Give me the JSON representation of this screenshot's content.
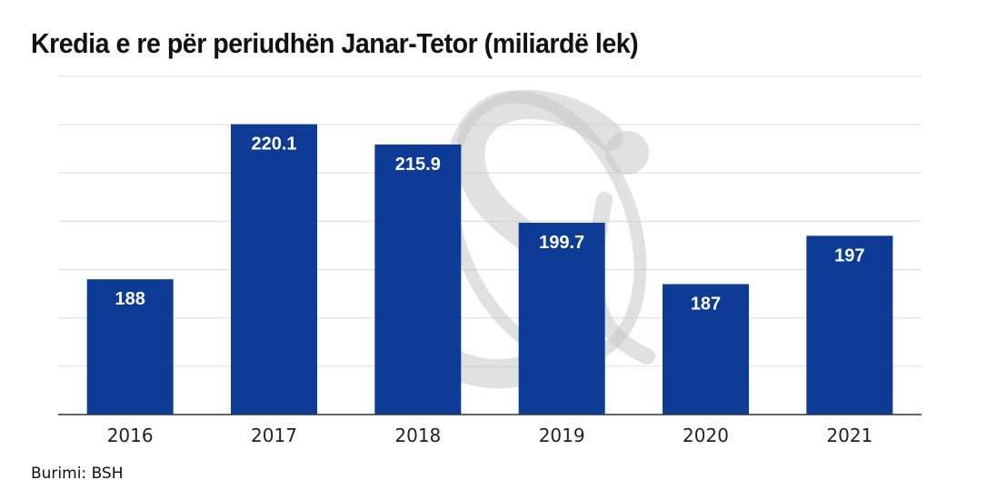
{
  "chart_data": {
    "type": "bar",
    "title": "Kredia e re për periudhën Janar-Tetor (miliardë lek)",
    "categories": [
      "2016",
      "2017",
      "2018",
      "2019",
      "2020",
      "2021"
    ],
    "values": [
      188,
      220.1,
      215.9,
      199.7,
      187,
      197
    ],
    "value_labels": [
      "188",
      "220.1",
      "215.9",
      "199.7",
      "187",
      "197"
    ],
    "xlabel": "",
    "ylabel": "",
    "ylim": [
      160,
      230
    ],
    "ytick_step": 10,
    "y_tick_labels_visible": false,
    "grid": true,
    "legend": "none",
    "source": "Burimi: BSH",
    "watermark": "Si logo",
    "colors": {
      "bar": "#0d3b96",
      "bar_label": "#ffffff",
      "grid": "#dcdcdc",
      "axis": "#333333",
      "tick_label": "#222222",
      "watermark": "#c8c8c8"
    }
  }
}
